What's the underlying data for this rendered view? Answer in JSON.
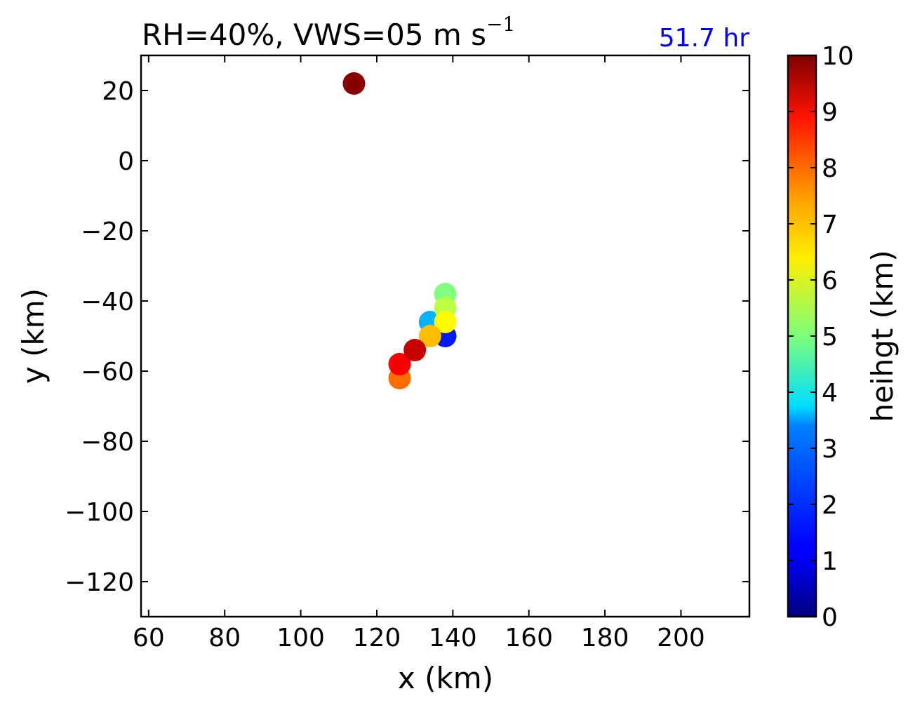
{
  "chart_data": {
    "type": "scatter",
    "title_main": "RH=40%, VWS=05 m s",
    "title_sup": "−1",
    "time_label": "51.7 hr",
    "xlabel": "x (km)",
    "ylabel": "y (km)",
    "xlim": [
      58,
      218
    ],
    "ylim": [
      -130,
      30
    ],
    "xticks": [
      60,
      80,
      100,
      120,
      140,
      160,
      180,
      200
    ],
    "xtick_labels": [
      "60",
      "80",
      "100",
      "120",
      "140",
      "160",
      "180",
      "200"
    ],
    "yticks": [
      20,
      0,
      -20,
      -40,
      -60,
      -80,
      -100,
      -120
    ],
    "ytick_labels": [
      "20",
      "0",
      "−20",
      "−40",
      "−60",
      "−80",
      "−100",
      "−120"
    ],
    "grid": false,
    "colorbar": {
      "label": "heihgt (km)",
      "range": [
        0,
        10
      ],
      "ticks": [
        0,
        1,
        2,
        3,
        4,
        5,
        6,
        7,
        8,
        9,
        10
      ],
      "tick_labels": [
        "0",
        "1",
        "2",
        "3",
        "4",
        "5",
        "6",
        "7",
        "8",
        "9",
        "10"
      ],
      "colormap": "jet"
    },
    "points": [
      {
        "x": 138,
        "y": -50,
        "height": 1.5
      },
      {
        "x": 134,
        "y": -46,
        "height": 3.0
      },
      {
        "x": 138,
        "y": -38,
        "height": 5.0
      },
      {
        "x": 138,
        "y": -42,
        "height": 5.6
      },
      {
        "x": 138,
        "y": -46,
        "height": 6.3
      },
      {
        "x": 134,
        "y": -50,
        "height": 6.9
      },
      {
        "x": 126,
        "y": -62,
        "height": 7.7
      },
      {
        "x": 126,
        "y": -58,
        "height": 8.8
      },
      {
        "x": 130,
        "y": -54,
        "height": 9.3
      },
      {
        "x": 114,
        "y": 22,
        "height": 9.9
      }
    ]
  }
}
